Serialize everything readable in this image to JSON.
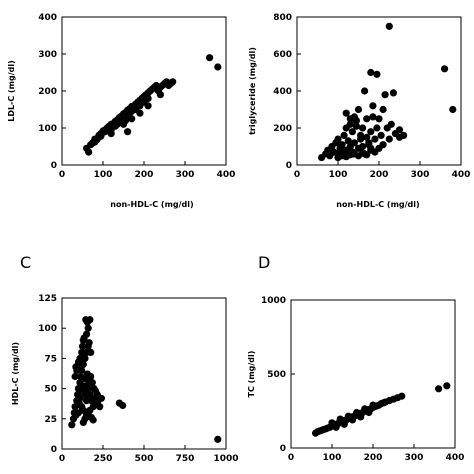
{
  "chart_data": [
    {
      "type": "scatter",
      "panel_label": "",
      "xlabel": "non-HDL-C (mg/dl)",
      "ylabel": "LDL-C (mg/dl)",
      "xlim": [
        0,
        400
      ],
      "ylim": [
        0,
        400
      ],
      "xticks": [
        "0",
        "100",
        "200",
        "300",
        "400"
      ],
      "yticks": [
        "0",
        "100",
        "200",
        "300",
        "400"
      ],
      "x": [
        60,
        65,
        70,
        75,
        80,
        80,
        85,
        90,
        90,
        95,
        95,
        100,
        100,
        105,
        105,
        110,
        110,
        115,
        115,
        120,
        120,
        120,
        125,
        125,
        130,
        130,
        135,
        135,
        140,
        140,
        145,
        145,
        150,
        150,
        155,
        155,
        160,
        160,
        165,
        165,
        170,
        170,
        175,
        180,
        180,
        185,
        190,
        190,
        195,
        200,
        200,
        205,
        210,
        210,
        215,
        220,
        225,
        230,
        235,
        240,
        245,
        250,
        255,
        260,
        265,
        270,
        120,
        140,
        160,
        180,
        200,
        150,
        170,
        130,
        190,
        210,
        160,
        240,
        360,
        380
      ],
      "y": [
        45,
        35,
        55,
        60,
        62,
        70,
        68,
        75,
        80,
        78,
        85,
        88,
        92,
        95,
        90,
        100,
        98,
        105,
        102,
        110,
        95,
        85,
        112,
        108,
        118,
        115,
        122,
        110,
        128,
        120,
        132,
        125,
        138,
        130,
        142,
        120,
        148,
        135,
        152,
        140,
        158,
        145,
        160,
        165,
        150,
        170,
        175,
        160,
        180,
        185,
        170,
        190,
        195,
        180,
        200,
        205,
        210,
        215,
        200,
        210,
        215,
        220,
        225,
        215,
        220,
        225,
        100,
        115,
        130,
        155,
        175,
        110,
        125,
        105,
        140,
        160,
        90,
        190,
        290,
        265
      ]
    },
    {
      "type": "scatter",
      "panel_label": "",
      "xlabel": "non-HDL-C (mg/dl)",
      "ylabel": "triglyceride (mg/dl)",
      "xlim": [
        0,
        400
      ],
      "ylim": [
        0,
        800
      ],
      "xticks": [
        "0",
        "100",
        "200",
        "300",
        "400"
      ],
      "yticks": [
        "0",
        "200",
        "400",
        "600",
        "800"
      ],
      "x": [
        60,
        70,
        75,
        80,
        85,
        90,
        95,
        100,
        100,
        105,
        110,
        110,
        115,
        120,
        120,
        125,
        125,
        130,
        130,
        135,
        135,
        140,
        140,
        145,
        150,
        150,
        155,
        160,
        160,
        165,
        170,
        170,
        175,
        180,
        180,
        185,
        190,
        195,
        200,
        205,
        210,
        210,
        220,
        225,
        230,
        240,
        250,
        260,
        100,
        110,
        120,
        130,
        140,
        150,
        160,
        170,
        180,
        190,
        200,
        130,
        145,
        155,
        175,
        185,
        215,
        235,
        250,
        225,
        165,
        180,
        195,
        360,
        380,
        120,
        140
      ],
      "y": [
        40,
        60,
        80,
        50,
        100,
        70,
        120,
        60,
        140,
        90,
        50,
        110,
        160,
        80,
        200,
        60,
        130,
        100,
        250,
        70,
        180,
        120,
        60,
        210,
        90,
        300,
        140,
        100,
        200,
        60,
        250,
        150,
        110,
        180,
        90,
        320,
        140,
        200,
        250,
        160,
        110,
        300,
        200,
        140,
        220,
        170,
        190,
        160,
        40,
        70,
        45,
        55,
        60,
        50,
        65,
        55,
        80,
        70,
        90,
        220,
        240,
        160,
        120,
        260,
        380,
        390,
        150,
        750,
        400,
        500,
        490,
        520,
        300,
        280,
        260
      ]
    },
    {
      "type": "scatter",
      "panel_label": "C",
      "xlabel": "",
      "ylabel": "HDL-C (mg/dl)",
      "xlim": [
        0,
        1000
      ],
      "ylim": [
        0,
        125
      ],
      "xticks": [
        "0",
        "250",
        "500",
        "750",
        "1000"
      ],
      "yticks": [
        "0",
        "25",
        "50",
        "75",
        "100",
        "125"
      ],
      "x": [
        60,
        70,
        75,
        80,
        85,
        90,
        95,
        100,
        100,
        105,
        110,
        110,
        115,
        120,
        120,
        125,
        130,
        130,
        135,
        140,
        140,
        145,
        150,
        150,
        155,
        160,
        160,
        165,
        170,
        175,
        180,
        185,
        190,
        195,
        200,
        205,
        210,
        215,
        220,
        230,
        240,
        80,
        90,
        100,
        110,
        120,
        130,
        140,
        150,
        160,
        170,
        180,
        190,
        130,
        150,
        160,
        170,
        145,
        125,
        155,
        175,
        135,
        115,
        100,
        85,
        165,
        350,
        370,
        950
      ],
      "y": [
        20,
        25,
        30,
        35,
        28,
        40,
        45,
        30,
        50,
        38,
        55,
        42,
        60,
        35,
        65,
        48,
        70,
        32,
        52,
        75,
        45,
        58,
        80,
        40,
        62,
        85,
        50,
        55,
        45,
        60,
        40,
        55,
        35,
        50,
        42,
        48,
        38,
        45,
        40,
        35,
        42,
        60,
        65,
        70,
        75,
        80,
        22,
        25,
        28,
        30,
        32,
        26,
        24,
        90,
        95,
        100,
        107,
        107,
        85,
        105,
        80,
        92,
        70,
        72,
        68,
        88,
        38,
        36,
        8
      ]
    },
    {
      "type": "scatter",
      "panel_label": "D",
      "xlabel": "",
      "ylabel": "TC (mg/dl)",
      "xlim": [
        0,
        400
      ],
      "ylim": [
        0,
        1000
      ],
      "xticks": [
        "0",
        "100",
        "200",
        "300",
        "400"
      ],
      "yticks": [
        "0",
        "500",
        "1000"
      ],
      "x": [
        60,
        65,
        70,
        75,
        80,
        85,
        90,
        95,
        100,
        105,
        110,
        115,
        120,
        125,
        130,
        135,
        140,
        145,
        150,
        155,
        160,
        165,
        170,
        175,
        180,
        185,
        190,
        195,
        200,
        205,
        210,
        215,
        220,
        225,
        230,
        240,
        250,
        260,
        270,
        100,
        120,
        140,
        160,
        180,
        200,
        110,
        130,
        150,
        170,
        190,
        360,
        380
      ],
      "y": [
        100,
        110,
        115,
        120,
        125,
        130,
        135,
        140,
        150,
        155,
        160,
        165,
        175,
        180,
        185,
        190,
        200,
        205,
        210,
        215,
        225,
        230,
        235,
        240,
        250,
        255,
        260,
        265,
        275,
        280,
        285,
        290,
        300,
        305,
        310,
        320,
        330,
        340,
        350,
        170,
        195,
        215,
        240,
        265,
        290,
        140,
        160,
        190,
        210,
        240,
        400,
        420
      ]
    }
  ]
}
